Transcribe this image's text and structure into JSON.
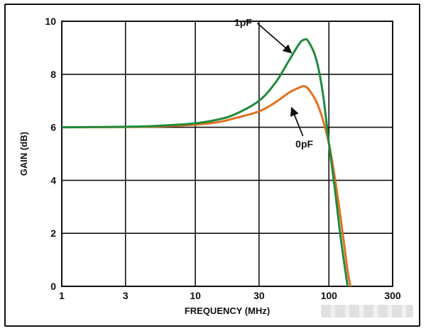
{
  "chart_data": {
    "type": "line",
    "title": "",
    "xlabel": "FREQUENCY (MHz)",
    "ylabel": "GAIN (dB)",
    "xscale": "log",
    "xlim": [
      1,
      300
    ],
    "ylim": [
      0,
      10
    ],
    "x_ticks": [
      1,
      3,
      10,
      30,
      100,
      300
    ],
    "x_tick_labels": [
      "1",
      "3",
      "10",
      "30",
      "100",
      "300"
    ],
    "y_ticks": [
      0,
      2,
      4,
      6,
      8,
      10
    ],
    "y_tick_labels": [
      "0",
      "2",
      "4",
      "6",
      "8",
      "10"
    ],
    "grid": true,
    "series": [
      {
        "name": "1pF",
        "color": "#1f8a3c",
        "x": [
          1,
          3,
          5,
          10,
          15,
          20,
          30,
          40,
          50,
          60,
          65,
          70,
          80,
          90,
          100,
          110,
          120,
          130,
          140
        ],
        "y": [
          6.0,
          6.02,
          6.05,
          6.15,
          6.3,
          6.5,
          7.0,
          7.7,
          8.5,
          9.15,
          9.3,
          9.25,
          8.6,
          7.3,
          5.4,
          3.8,
          2.2,
          0.9,
          -0.2
        ]
      },
      {
        "name": "0pF",
        "color": "#e07020",
        "x": [
          1,
          3,
          5,
          10,
          15,
          20,
          30,
          40,
          50,
          60,
          65,
          70,
          80,
          90,
          100,
          110,
          120,
          130,
          140,
          150
        ],
        "y": [
          6.0,
          6.01,
          6.03,
          6.1,
          6.2,
          6.35,
          6.6,
          6.95,
          7.3,
          7.5,
          7.55,
          7.45,
          7.0,
          6.3,
          5.4,
          4.2,
          2.9,
          1.6,
          0.4,
          -0.3
        ]
      }
    ],
    "annotations": [
      {
        "text": "1pF",
        "series": "1pF",
        "x": 55,
        "y": 8.7
      },
      {
        "text": "0pF",
        "series": "0pF",
        "x": 50,
        "y": 6.9
      }
    ]
  }
}
